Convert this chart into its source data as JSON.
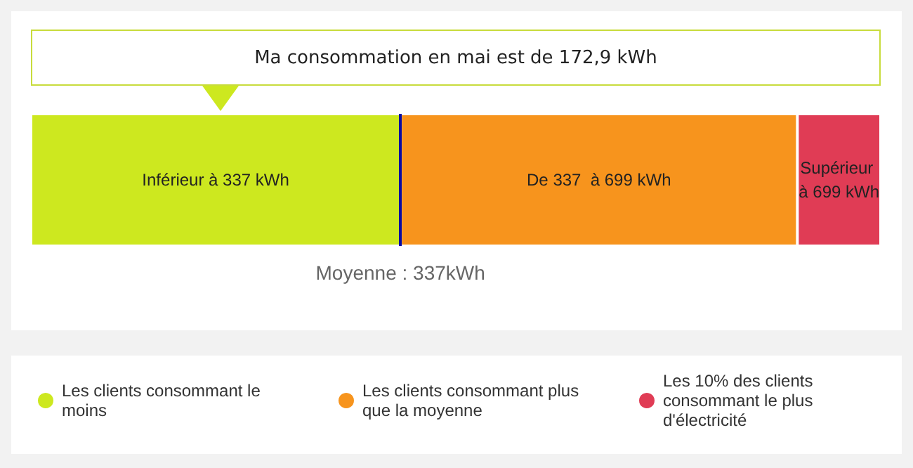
{
  "chart_data": {
    "type": "bar",
    "orientation": "horizontal",
    "stacked": true,
    "legend": "bottom",
    "categories": [
      null
    ],
    "series": [
      {
        "name": "Les clients consommant le moins",
        "color": "#cde81f",
        "values": [
          337
        ],
        "value_labels": [
          "Inférieur à 337 kWh"
        ]
      },
      {
        "name": "Les clients consommant plus que la moyenne",
        "color": "#f7941d",
        "values": [
          362
        ],
        "value_labels": [
          "De 337  à 699 kWh"
        ]
      },
      {
        "name": "Les 10% des clients consommant le plus d'électricité",
        "color": "#e03c55",
        "values": [
          76
        ],
        "value_labels": [
          "Supérieur à 699 kWh"
        ]
      }
    ],
    "ref_lines": [
      {
        "axis": "x",
        "value": 337,
        "label": "Moyenne : 337kWh",
        "color": "#0a0aa0"
      }
    ],
    "annotations": [
      "Ma consommation en mai est de 172,9 kWh"
    ]
  }
}
